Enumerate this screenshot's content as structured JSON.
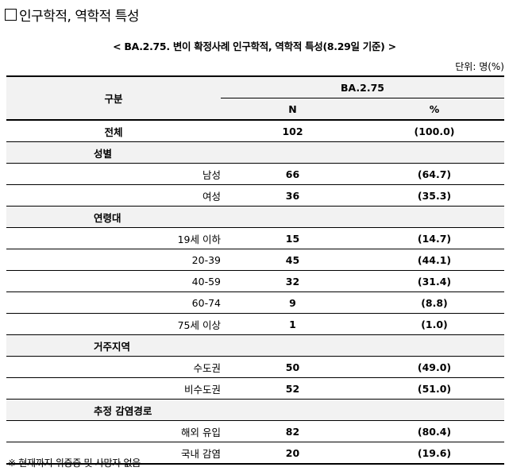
{
  "heading": "인구학적, 역학적 특성",
  "caption": "< BA.2.75. 변이 확정사례 인구학적, 역학적 특성(8.29일 기준) >",
  "unit": "단위: 명(%)",
  "table": {
    "header_category": "구분",
    "header_group": "BA.2.75",
    "header_n": "N",
    "header_pct": "%",
    "total": {
      "label": "전체",
      "n": "102",
      "pct": "(100.0)"
    },
    "sections": [
      {
        "title": "성별",
        "rows": [
          {
            "label": "남성",
            "n": "66",
            "pct": "(64.7)"
          },
          {
            "label": "여성",
            "n": "36",
            "pct": "(35.3)"
          }
        ]
      },
      {
        "title": "연령대",
        "rows": [
          {
            "label": "19세 이하",
            "n": "15",
            "pct": "(14.7)"
          },
          {
            "label": "20-39",
            "n": "45",
            "pct": "(44.1)"
          },
          {
            "label": "40-59",
            "n": "32",
            "pct": "(31.4)"
          },
          {
            "label": "60-74",
            "n": "9",
            "pct": "(8.8)"
          },
          {
            "label": "75세 이상",
            "n": "1",
            "pct": "(1.0)"
          }
        ]
      },
      {
        "title": "거주지역",
        "rows": [
          {
            "label": "수도권",
            "n": "50",
            "pct": "(49.0)"
          },
          {
            "label": "비수도권",
            "n": "52",
            "pct": "(51.0)"
          }
        ]
      },
      {
        "title": "추정 감염경로",
        "rows": [
          {
            "label": "해외 유입",
            "n": "82",
            "pct": "(80.4)"
          },
          {
            "label": "국내 감염",
            "n": "20",
            "pct": "(19.6)"
          }
        ]
      }
    ]
  },
  "footnote": "※ 현재까지 위중증 및 사망자 없음"
}
